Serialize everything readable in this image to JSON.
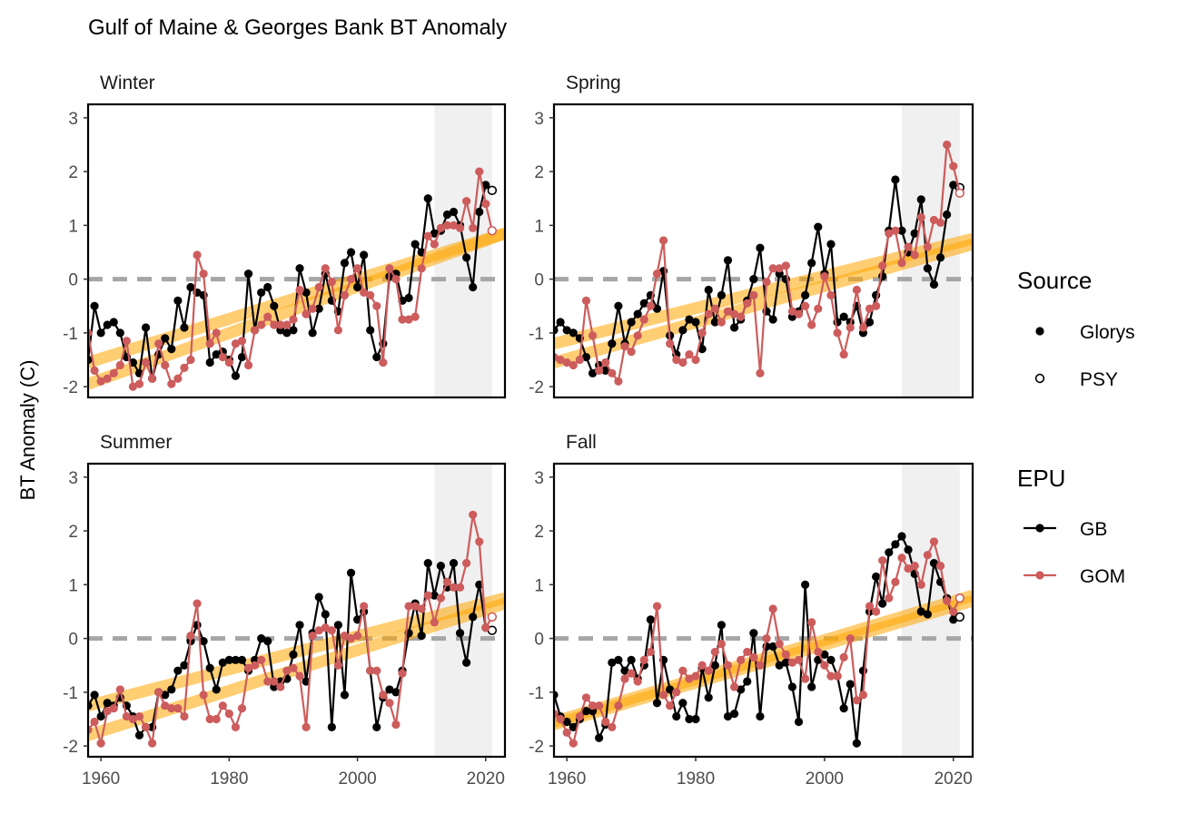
{
  "title": "Gulf of Maine & Georges Bank BT Anomaly",
  "ylabel": "BT Anomaly (C)",
  "legend": {
    "source_title": "Source",
    "source_items": [
      "Glorys",
      "PSY"
    ],
    "epu_title": "EPU",
    "epu_items": [
      "GB",
      "GOM"
    ]
  },
  "colors": {
    "GB": "#000000",
    "GOM": "#cd5c5c",
    "trend": "#ffa500",
    "shade": "#f0f0f0",
    "zero_line": "#a6a6a6"
  },
  "chart_data": {
    "type": "line",
    "facets": [
      "Winter",
      "Spring",
      "Summer",
      "Fall"
    ],
    "xlim": [
      1958,
      2023
    ],
    "ylim": [
      -2.2,
      3.25
    ],
    "x_ticks": [
      1960,
      1980,
      2000,
      2020
    ],
    "y_ticks": [
      -2,
      -1,
      0,
      1,
      2,
      3
    ],
    "shaded_period": [
      2012,
      2021
    ],
    "reference_line": 0,
    "psy_years": [
      2021,
      2022
    ],
    "series": [
      {
        "facet": "Winter",
        "epu": "GB",
        "start_year": 1958,
        "values": [
          -1.5,
          -0.5,
          -1.0,
          -0.85,
          -0.8,
          -1.0,
          -1.45,
          -1.55,
          -1.75,
          -0.9,
          -1.85,
          -1.4,
          -1.1,
          -1.3,
          -0.4,
          -0.9,
          -0.15,
          -0.25,
          -0.3,
          -1.55,
          -1.4,
          -1.35,
          -1.5,
          -1.8,
          -1.45,
          0.1,
          -0.95,
          -0.25,
          -0.15,
          -0.5,
          -0.95,
          -1.0,
          -0.95,
          0.2,
          -0.25,
          -1.0,
          -0.55,
          0.1,
          -0.4,
          -0.6,
          0.3,
          0.5,
          -0.15,
          0.45,
          -0.95,
          -1.45,
          -1.2,
          0.05,
          0.1,
          -0.4,
          -0.35,
          0.65,
          0.5,
          1.5,
          0.85,
          0.9,
          1.2,
          1.25,
          1.0,
          0.4,
          -0.15,
          1.25,
          1.75,
          1.65
        ]
      },
      {
        "facet": "Winter",
        "epu": "GOM",
        "start_year": 1958,
        "values": [
          -1.0,
          -1.7,
          -1.9,
          -1.85,
          -1.75,
          -1.6,
          -1.15,
          -2.0,
          -1.95,
          -1.55,
          -1.85,
          -1.2,
          -1.6,
          -1.95,
          -1.85,
          -1.65,
          -1.5,
          0.45,
          0.1,
          -1.2,
          -1.0,
          -1.45,
          -1.55,
          -1.2,
          -1.15,
          -1.6,
          -0.95,
          -0.85,
          -0.7,
          -0.85,
          -0.85,
          -0.85,
          -0.75,
          -0.2,
          -0.65,
          -0.55,
          -0.15,
          0.2,
          -0.05,
          -0.95,
          -0.3,
          0.0,
          0.2,
          -0.25,
          -0.3,
          -0.5,
          -1.55,
          0.2,
          0.0,
          -0.75,
          -0.75,
          -0.7,
          0.2,
          0.8,
          0.65,
          0.95,
          1.0,
          1.0,
          0.95,
          1.45,
          0.95,
          2.0,
          1.4,
          0.9
        ]
      },
      {
        "facet": "Spring",
        "epu": "GB",
        "start_year": 1958,
        "values": [
          -0.95,
          -0.8,
          -0.95,
          -1.0,
          -1.1,
          -1.45,
          -1.75,
          -1.6,
          -1.7,
          -1.2,
          -0.5,
          -1.2,
          -0.8,
          -0.65,
          -0.45,
          -0.3,
          -0.55,
          0.15,
          -1.05,
          -1.4,
          -0.95,
          -0.75,
          -0.8,
          -1.3,
          -0.2,
          -0.8,
          -0.3,
          0.35,
          -0.9,
          -0.75,
          -0.4,
          0.0,
          0.58,
          -0.6,
          -0.75,
          0.1,
          0.0,
          -0.7,
          -0.6,
          -0.3,
          0.3,
          0.97,
          0.1,
          0.65,
          -0.8,
          -0.7,
          -0.8,
          -0.5,
          -1.0,
          -0.8,
          -0.3,
          0.05,
          0.9,
          1.85,
          0.9,
          0.5,
          0.85,
          1.48,
          0.2,
          -0.1,
          0.4,
          1.2,
          1.75,
          1.7
        ]
      },
      {
        "facet": "Spring",
        "epu": "GOM",
        "start_year": 1958,
        "values": [
          -1.45,
          -1.5,
          -1.55,
          -1.6,
          -1.5,
          -0.4,
          -1.05,
          -1.7,
          -1.55,
          -1.75,
          -1.9,
          -1.25,
          -1.35,
          -1.05,
          -0.75,
          -0.5,
          0.1,
          0.72,
          -1.2,
          -1.5,
          -1.55,
          -1.4,
          -1.5,
          -1.0,
          -0.65,
          -0.55,
          -0.8,
          -0.6,
          -0.65,
          -0.7,
          -0.45,
          -0.3,
          -1.75,
          -0.05,
          0.2,
          0.2,
          0.25,
          -0.6,
          -0.65,
          -0.5,
          -0.85,
          -0.55,
          0.05,
          -0.3,
          -1.0,
          -1.4,
          -0.9,
          -0.2,
          -0.9,
          -0.55,
          -0.5,
          0.25,
          0.85,
          0.9,
          0.3,
          0.6,
          0.45,
          1.15,
          0.6,
          1.1,
          1.05,
          2.5,
          2.1,
          1.6
        ]
      },
      {
        "facet": "Summer",
        "epu": "GB",
        "start_year": 1958,
        "values": [
          -1.25,
          -1.05,
          -1.45,
          -1.2,
          -1.25,
          -1.1,
          -1.25,
          -1.45,
          -1.8,
          -1.65,
          -1.65,
          -1.0,
          -1.05,
          -0.95,
          -0.6,
          -0.5,
          -0.05,
          0.25,
          -0.05,
          -0.55,
          -0.95,
          -0.45,
          -0.4,
          -0.4,
          -0.4,
          -0.6,
          -0.4,
          0.0,
          -0.05,
          -0.9,
          -0.8,
          -0.75,
          -0.3,
          0.25,
          -0.8,
          0.1,
          0.77,
          0.45,
          -1.65,
          0.25,
          -1.05,
          1.22,
          0.35,
          0.5,
          -0.6,
          -1.65,
          -1.1,
          -0.95,
          -1.0,
          -0.6,
          0.1,
          0.65,
          0.05,
          1.4,
          0.8,
          1.35,
          0.95,
          1.4,
          0.1,
          -0.45,
          0.4,
          1.0,
          0.2,
          0.15
        ]
      },
      {
        "facet": "Summer",
        "epu": "GOM",
        "start_year": 1958,
        "values": [
          -1.7,
          -1.55,
          -1.95,
          -1.35,
          -1.3,
          -0.95,
          -1.45,
          -1.5,
          -1.45,
          -1.65,
          -1.95,
          -1.0,
          -1.25,
          -1.3,
          -1.3,
          -1.45,
          0.05,
          0.65,
          -1.05,
          -1.5,
          -1.5,
          -1.25,
          -1.4,
          -1.65,
          -1.3,
          -0.55,
          -0.5,
          -0.4,
          -0.8,
          -0.8,
          -0.9,
          -0.6,
          -0.55,
          -0.7,
          -1.65,
          0.05,
          0.15,
          0.2,
          0.15,
          -0.5,
          0.05,
          0.0,
          0.05,
          0.6,
          -0.6,
          -0.6,
          -1.05,
          -1.2,
          -1.6,
          -0.65,
          0.6,
          0.6,
          0.55,
          0.8,
          0.3,
          0.75,
          1.05,
          0.95,
          0.95,
          1.4,
          2.3,
          1.8,
          0.2,
          0.4
        ]
      },
      {
        "facet": "Fall",
        "epu": "GB",
        "start_year": 1958,
        "values": [
          -1.05,
          -1.45,
          -1.55,
          -1.65,
          -1.5,
          -1.35,
          -1.35,
          -1.85,
          -1.6,
          -0.45,
          -0.4,
          -0.6,
          -0.4,
          -0.75,
          -0.5,
          0.35,
          -1.2,
          -0.4,
          -0.95,
          -1.45,
          -1.2,
          -1.5,
          -1.5,
          -0.55,
          -1.1,
          -0.5,
          0.25,
          -1.45,
          -1.4,
          -0.95,
          -0.8,
          0.1,
          -1.45,
          -0.15,
          -0.15,
          -0.5,
          -0.45,
          -0.9,
          -1.55,
          1.0,
          -0.9,
          -0.4,
          -0.3,
          -0.4,
          -0.7,
          -1.3,
          -0.85,
          -1.95,
          -0.6,
          0.5,
          1.15,
          0.65,
          1.6,
          1.75,
          1.9,
          1.65,
          1.2,
          0.5,
          0.45,
          1.4,
          1.05,
          0.75,
          0.35,
          0.4
        ]
      },
      {
        "facet": "Fall",
        "epu": "GOM",
        "start_year": 1958,
        "values": [
          -1.4,
          -1.5,
          -1.75,
          -1.95,
          -1.45,
          -1.1,
          -1.25,
          -1.25,
          -1.55,
          -1.65,
          -1.25,
          -0.75,
          -0.65,
          -0.8,
          -0.4,
          -0.25,
          0.6,
          -1.05,
          -1.25,
          -1.0,
          -0.6,
          -0.75,
          -0.7,
          -0.5,
          -0.6,
          -0.25,
          -0.1,
          -0.5,
          -0.9,
          -0.4,
          -0.25,
          -0.35,
          -0.5,
          0.0,
          0.55,
          -0.1,
          -0.3,
          -0.45,
          -0.4,
          -0.75,
          0.3,
          -0.25,
          -0.5,
          -0.7,
          -0.7,
          -0.35,
          0.0,
          -1.15,
          -1.05,
          0.6,
          0.5,
          1.45,
          0.75,
          1.05,
          1.5,
          1.3,
          1.35,
          1.0,
          1.55,
          1.8,
          1.35,
          0.7,
          0.5,
          0.75
        ]
      }
    ],
    "trends": [
      {
        "facet": "Winter",
        "epu": "GB",
        "x": [
          1958,
          2023
        ],
        "y": [
          -1.55,
          0.85
        ]
      },
      {
        "facet": "Winter",
        "epu": "GOM",
        "x": [
          1958,
          2023
        ],
        "y": [
          -1.95,
          0.85
        ]
      },
      {
        "facet": "Spring",
        "epu": "GB",
        "x": [
          1958,
          2023
        ],
        "y": [
          -1.2,
          0.75
        ]
      },
      {
        "facet": "Spring",
        "epu": "GOM",
        "x": [
          1958,
          2023
        ],
        "y": [
          -1.55,
          0.65
        ]
      },
      {
        "facet": "Summer",
        "epu": "GB",
        "x": [
          1958,
          2023
        ],
        "y": [
          -1.25,
          0.75
        ]
      },
      {
        "facet": "Summer",
        "epu": "GOM",
        "x": [
          1958,
          2023
        ],
        "y": [
          -1.8,
          0.65
        ]
      },
      {
        "facet": "Fall",
        "epu": "GB",
        "x": [
          1958,
          2023
        ],
        "y": [
          -1.55,
          0.8
        ]
      },
      {
        "facet": "Fall",
        "epu": "GOM",
        "x": [
          1958,
          2023
        ],
        "y": [
          -1.6,
          0.7
        ]
      }
    ]
  }
}
